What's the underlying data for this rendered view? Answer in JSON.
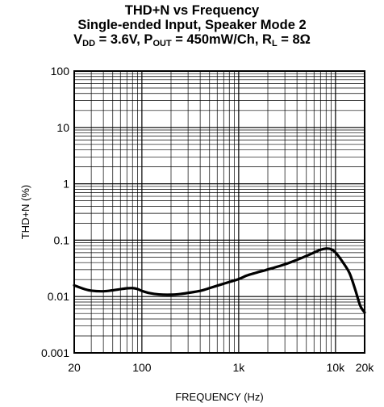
{
  "chart_data": {
    "type": "line",
    "title": "THD+N vs Frequency",
    "subtitle": "Single-ended Input, Speaker Mode 2",
    "conditions": [
      {
        "name": "V",
        "sub": "DD",
        "value": " = 3.6V"
      },
      {
        "name": "P",
        "sub": "OUT",
        "value": " = 450mW/Ch"
      },
      {
        "name": "R",
        "sub": "L",
        "value": " = 8Ω"
      }
    ],
    "xlabel": "FREQUENCY (Hz)",
    "ylabel": "THD+N (%)",
    "xscale": "log",
    "yscale": "log",
    "xlim": [
      20,
      20000
    ],
    "ylim": [
      0.001,
      100
    ],
    "grid": true,
    "xticks": [
      {
        "value": 20,
        "label": "20"
      },
      {
        "value": 100,
        "label": "100"
      },
      {
        "value": 1000,
        "label": "1k"
      },
      {
        "value": 10000,
        "label": "10k"
      },
      {
        "value": 20000,
        "label": "20k"
      }
    ],
    "yticks": [
      {
        "value": 0.001,
        "label": "0.001"
      },
      {
        "value": 0.01,
        "label": "0.01"
      },
      {
        "value": 0.1,
        "label": "0.1"
      },
      {
        "value": 1,
        "label": "1"
      },
      {
        "value": 10,
        "label": "10"
      },
      {
        "value": 100,
        "label": "100"
      }
    ],
    "series": [
      {
        "color": "#000000",
        "x": [
          20,
          25,
          30,
          40,
          50,
          60,
          70,
          80,
          90,
          100,
          120,
          150,
          200,
          250,
          300,
          400,
          500,
          700,
          1000,
          1200,
          1500,
          2000,
          3000,
          4000,
          5000,
          6000,
          7000,
          8000,
          9000,
          10000,
          12000,
          14000,
          16000,
          18000,
          20000
        ],
        "y": [
          0.0158,
          0.0137,
          0.0127,
          0.0124,
          0.0129,
          0.0135,
          0.014,
          0.0141,
          0.0136,
          0.0126,
          0.0115,
          0.0109,
          0.0108,
          0.0111,
          0.0116,
          0.0126,
          0.0141,
          0.0169,
          0.0204,
          0.0234,
          0.0263,
          0.0302,
          0.0372,
          0.0447,
          0.0525,
          0.0603,
          0.0676,
          0.0708,
          0.0691,
          0.0603,
          0.0398,
          0.0257,
          0.0132,
          0.0069,
          0.0052
        ]
      }
    ]
  }
}
